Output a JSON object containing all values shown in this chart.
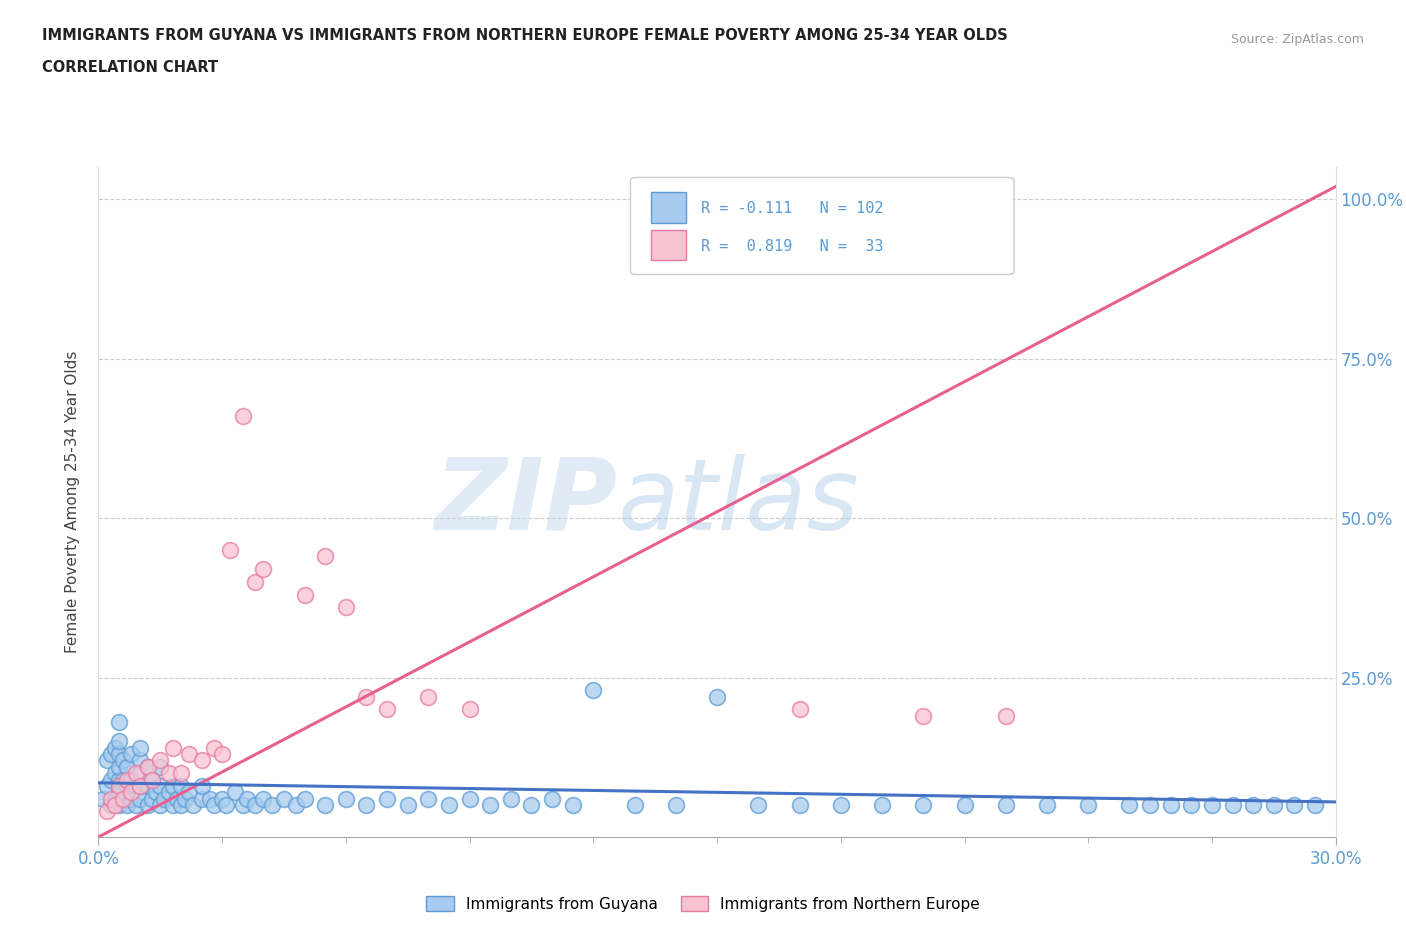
{
  "title_line1": "IMMIGRANTS FROM GUYANA VS IMMIGRANTS FROM NORTHERN EUROPE FEMALE POVERTY AMONG 25-34 YEAR OLDS",
  "title_line2": "CORRELATION CHART",
  "source_text": "Source: ZipAtlas.com",
  "ylabel": "Female Poverty Among 25-34 Year Olds",
  "xlim": [
    0.0,
    0.3
  ],
  "ylim": [
    0.0,
    1.05
  ],
  "ytick_labels": [
    "25.0%",
    "50.0%",
    "75.0%",
    "100.0%"
  ],
  "ytick_values": [
    0.25,
    0.5,
    0.75,
    1.0
  ],
  "watermark_zip": "ZIP",
  "watermark_atlas": "atlas",
  "color_guyana": "#a8ccee",
  "color_guyana_edge": "#5b9bd5",
  "color_ne": "#f9c4d2",
  "color_ne_edge": "#e879a0",
  "color_line_guyana": "#4472c4",
  "color_line_ne": "#e86090",
  "background_color": "#ffffff",
  "title_color": "#222222",
  "axis_tick_color": "#5b9bd5",
  "grid_color": "#cccccc",
  "ne_line_x0": 0.0,
  "ne_line_y0": 0.0,
  "ne_line_x1": 0.3,
  "ne_line_y1": 1.02,
  "gy_line_x0": 0.0,
  "gy_line_y0": 0.085,
  "gy_line_x1": 0.3,
  "gy_line_y1": 0.055,
  "guyana_x": [
    0.001,
    0.002,
    0.002,
    0.003,
    0.003,
    0.003,
    0.004,
    0.004,
    0.004,
    0.005,
    0.005,
    0.005,
    0.005,
    0.005,
    0.005,
    0.005,
    0.006,
    0.006,
    0.006,
    0.007,
    0.007,
    0.007,
    0.008,
    0.008,
    0.008,
    0.009,
    0.009,
    0.01,
    0.01,
    0.01,
    0.01,
    0.01,
    0.012,
    0.012,
    0.012,
    0.013,
    0.013,
    0.014,
    0.015,
    0.015,
    0.015,
    0.016,
    0.017,
    0.018,
    0.018,
    0.019,
    0.02,
    0.02,
    0.021,
    0.022,
    0.023,
    0.025,
    0.025,
    0.027,
    0.028,
    0.03,
    0.031,
    0.033,
    0.035,
    0.036,
    0.038,
    0.04,
    0.042,
    0.045,
    0.048,
    0.05,
    0.055,
    0.06,
    0.065,
    0.07,
    0.075,
    0.08,
    0.085,
    0.09,
    0.095,
    0.1,
    0.105,
    0.11,
    0.115,
    0.12,
    0.13,
    0.14,
    0.15,
    0.16,
    0.17,
    0.18,
    0.19,
    0.2,
    0.21,
    0.22,
    0.23,
    0.24,
    0.25,
    0.255,
    0.26,
    0.265,
    0.27,
    0.275,
    0.28,
    0.285,
    0.29,
    0.295
  ],
  "guyana_y": [
    0.06,
    0.08,
    0.12,
    0.05,
    0.09,
    0.13,
    0.06,
    0.1,
    0.14,
    0.05,
    0.07,
    0.09,
    0.11,
    0.13,
    0.15,
    0.18,
    0.06,
    0.09,
    0.12,
    0.05,
    0.08,
    0.11,
    0.06,
    0.09,
    0.13,
    0.05,
    0.08,
    0.06,
    0.08,
    0.1,
    0.12,
    0.14,
    0.05,
    0.08,
    0.11,
    0.06,
    0.09,
    0.07,
    0.05,
    0.08,
    0.11,
    0.06,
    0.07,
    0.05,
    0.08,
    0.06,
    0.05,
    0.08,
    0.06,
    0.07,
    0.05,
    0.06,
    0.08,
    0.06,
    0.05,
    0.06,
    0.05,
    0.07,
    0.05,
    0.06,
    0.05,
    0.06,
    0.05,
    0.06,
    0.05,
    0.06,
    0.05,
    0.06,
    0.05,
    0.06,
    0.05,
    0.06,
    0.05,
    0.06,
    0.05,
    0.06,
    0.05,
    0.06,
    0.05,
    0.23,
    0.05,
    0.05,
    0.22,
    0.05,
    0.05,
    0.05,
    0.05,
    0.05,
    0.05,
    0.05,
    0.05,
    0.05,
    0.05,
    0.05,
    0.05,
    0.05,
    0.05,
    0.05,
    0.05,
    0.05,
    0.05,
    0.05
  ],
  "ne_x": [
    0.002,
    0.003,
    0.004,
    0.005,
    0.006,
    0.007,
    0.008,
    0.009,
    0.01,
    0.012,
    0.013,
    0.015,
    0.017,
    0.018,
    0.02,
    0.022,
    0.025,
    0.028,
    0.03,
    0.032,
    0.035,
    0.038,
    0.04,
    0.05,
    0.055,
    0.06,
    0.065,
    0.07,
    0.08,
    0.09,
    0.17,
    0.2,
    0.22
  ],
  "ne_y": [
    0.04,
    0.06,
    0.05,
    0.08,
    0.06,
    0.09,
    0.07,
    0.1,
    0.08,
    0.11,
    0.09,
    0.12,
    0.1,
    0.14,
    0.1,
    0.13,
    0.12,
    0.14,
    0.13,
    0.45,
    0.66,
    0.4,
    0.42,
    0.38,
    0.44,
    0.36,
    0.22,
    0.2,
    0.22,
    0.2,
    0.2,
    0.19,
    0.19
  ]
}
